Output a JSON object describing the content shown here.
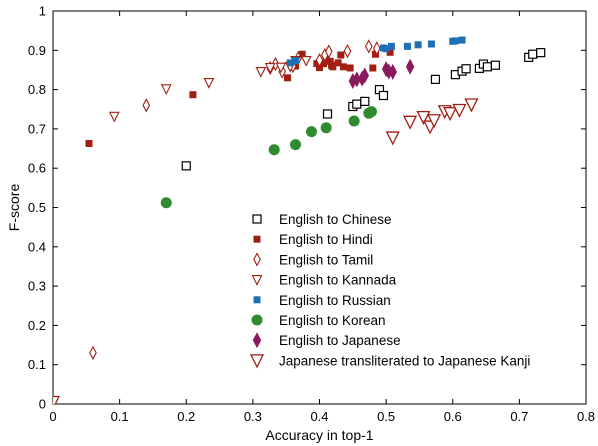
{
  "chart_data": {
    "type": "scatter",
    "title": "",
    "xlabel": "Accuracy in top-1",
    "ylabel": "F-score",
    "xlim": [
      0,
      0.8
    ],
    "ylim": [
      0,
      1
    ],
    "grid": false,
    "legend_position": "center-right",
    "x_ticks": [
      "0",
      "0.1",
      "0.2",
      "0.3",
      "0.4",
      "0.5",
      "0.6",
      "0.7",
      "0.8"
    ],
    "y_ticks": [
      "0",
      "0.1",
      "0.2",
      "0.3",
      "0.4",
      "0.5",
      "0.6",
      "0.7",
      "0.8",
      "0.9",
      "1"
    ],
    "series": [
      {
        "name": "English to Chinese",
        "marker": "square-open",
        "color": "#000000",
        "points": [
          [
            0.2,
            0.606
          ],
          [
            0.412,
            0.738
          ],
          [
            0.45,
            0.757
          ],
          [
            0.456,
            0.763
          ],
          [
            0.468,
            0.77
          ],
          [
            0.49,
            0.8
          ],
          [
            0.496,
            0.785
          ],
          [
            0.574,
            0.826
          ],
          [
            0.604,
            0.838
          ],
          [
            0.614,
            0.847
          ],
          [
            0.62,
            0.853
          ],
          [
            0.64,
            0.854
          ],
          [
            0.646,
            0.865
          ],
          [
            0.652,
            0.858
          ],
          [
            0.664,
            0.862
          ],
          [
            0.714,
            0.882
          ],
          [
            0.72,
            0.89
          ],
          [
            0.732,
            0.894
          ]
        ]
      },
      {
        "name": "English to Hindi",
        "marker": "square-filled",
        "color": "#a01e12",
        "points": [
          [
            0.054,
            0.663
          ],
          [
            0.21,
            0.787
          ],
          [
            0.352,
            0.83
          ],
          [
            0.364,
            0.86
          ],
          [
            0.374,
            0.89
          ],
          [
            0.396,
            0.866
          ],
          [
            0.4,
            0.856
          ],
          [
            0.406,
            0.866
          ],
          [
            0.41,
            0.876
          ],
          [
            0.416,
            0.872
          ],
          [
            0.418,
            0.862
          ],
          [
            0.42,
            0.858
          ],
          [
            0.428,
            0.868
          ],
          [
            0.432,
            0.888
          ],
          [
            0.436,
            0.858
          ],
          [
            0.446,
            0.855
          ],
          [
            0.48,
            0.855
          ],
          [
            0.484,
            0.89
          ],
          [
            0.506,
            0.895
          ]
        ]
      },
      {
        "name": "English to Tamil",
        "marker": "diamond-open",
        "color": "#a01e12",
        "points": [
          [
            0.0,
            0.0
          ],
          [
            0.06,
            0.13
          ],
          [
            0.14,
            0.76
          ],
          [
            0.326,
            0.855
          ],
          [
            0.334,
            0.865
          ],
          [
            0.344,
            0.846
          ],
          [
            0.36,
            0.86
          ],
          [
            0.368,
            0.88
          ],
          [
            0.4,
            0.875
          ],
          [
            0.408,
            0.888
          ],
          [
            0.414,
            0.897
          ],
          [
            0.442,
            0.898
          ],
          [
            0.474,
            0.91
          ],
          [
            0.486,
            0.905
          ]
        ]
      },
      {
        "name": "English to Kannada",
        "marker": "triangle-down-open",
        "color": "#a01e12",
        "points": [
          [
            0.092,
            0.732
          ],
          [
            0.17,
            0.802
          ],
          [
            0.234,
            0.818
          ],
          [
            0.312,
            0.846
          ],
          [
            0.326,
            0.856
          ],
          [
            0.342,
            0.857
          ],
          [
            0.356,
            0.859
          ],
          [
            0.364,
            0.874
          ],
          [
            0.38,
            0.874
          ]
        ]
      },
      {
        "name": "English to Russian",
        "marker": "square-filled",
        "color": "#1f6fb4",
        "points": [
          [
            0.356,
            0.868
          ],
          [
            0.364,
            0.874
          ],
          [
            0.496,
            0.906
          ],
          [
            0.5,
            0.904
          ],
          [
            0.508,
            0.91
          ],
          [
            0.532,
            0.91
          ],
          [
            0.548,
            0.914
          ],
          [
            0.568,
            0.916
          ],
          [
            0.6,
            0.923
          ],
          [
            0.604,
            0.924
          ],
          [
            0.614,
            0.926
          ]
        ]
      },
      {
        "name": "English to Korean",
        "marker": "circle-filled",
        "color": "#2e8b2e",
        "points": [
          [
            0.17,
            0.512
          ],
          [
            0.332,
            0.647
          ],
          [
            0.364,
            0.66
          ],
          [
            0.388,
            0.693
          ],
          [
            0.41,
            0.703
          ],
          [
            0.452,
            0.72
          ],
          [
            0.474,
            0.74
          ],
          [
            0.478,
            0.744
          ]
        ]
      },
      {
        "name": "English to Japanese",
        "marker": "diamond-filled",
        "color": "#8b1a5c",
        "points": [
          [
            0.45,
            0.822
          ],
          [
            0.456,
            0.826
          ],
          [
            0.464,
            0.828
          ],
          [
            0.468,
            0.836
          ],
          [
            0.5,
            0.852
          ],
          [
            0.504,
            0.846
          ],
          [
            0.51,
            0.845
          ],
          [
            0.536,
            0.858
          ]
        ]
      },
      {
        "name": "Japanese transliterated to Japanese Kanji",
        "marker": "triangle-down-open-large",
        "color": "#a01e12",
        "points": [
          [
            0.0,
            0.005
          ],
          [
            0.51,
            0.678
          ],
          [
            0.536,
            0.718
          ],
          [
            0.556,
            0.73
          ],
          [
            0.566,
            0.706
          ],
          [
            0.572,
            0.722
          ],
          [
            0.588,
            0.745
          ],
          [
            0.596,
            0.74
          ],
          [
            0.61,
            0.748
          ],
          [
            0.628,
            0.762
          ]
        ]
      }
    ]
  }
}
